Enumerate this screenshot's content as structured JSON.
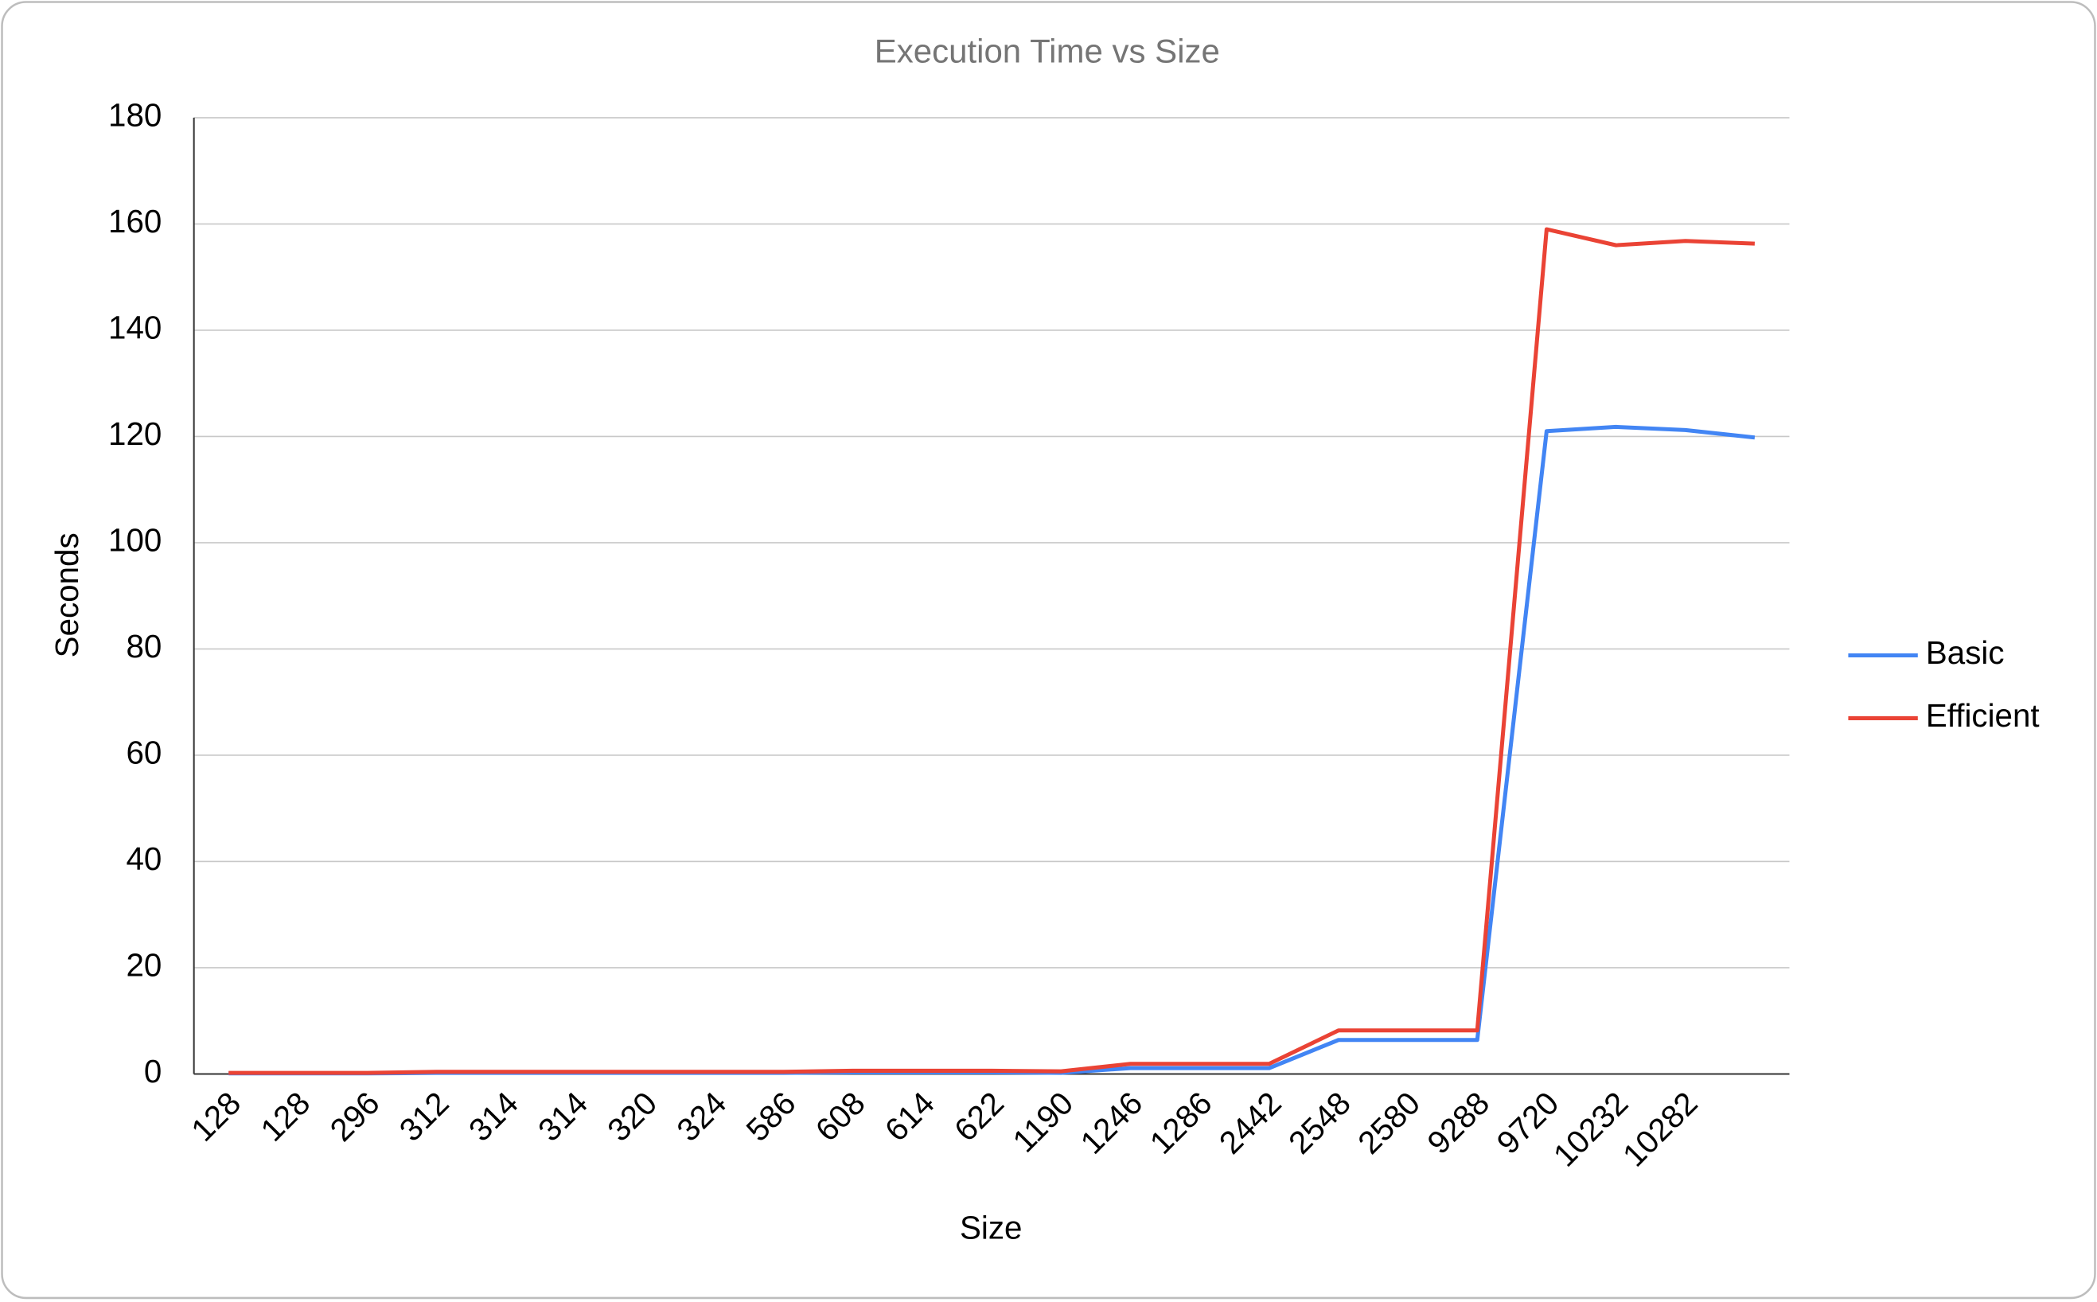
{
  "chart_data": {
    "type": "line",
    "title": "Execution Time vs Size",
    "x_label": "Size",
    "y_label": "Seconds",
    "categories": [
      "128",
      "128",
      "296",
      "312",
      "314",
      "314",
      "320",
      "324",
      "586",
      "608",
      "614",
      "622",
      "1190",
      "1246",
      "1286",
      "2442",
      "2548",
      "2580",
      "9288",
      "9720",
      "10232",
      "10282",
      null
    ],
    "series": [
      {
        "name": "Basic",
        "color": "#4285f4",
        "values": [
          0.1,
          0.1,
          0.1,
          0.2,
          0.2,
          0.2,
          0.2,
          0.2,
          0.2,
          0.3,
          0.3,
          0.3,
          0.2,
          1.1,
          1.1,
          1.1,
          6.4,
          6.4,
          6.4,
          121,
          121.8,
          121.2,
          119.8
        ]
      },
      {
        "name": "Efficient",
        "color": "#ea4335",
        "values": [
          0.2,
          0.2,
          0.2,
          0.4,
          0.4,
          0.4,
          0.4,
          0.4,
          0.4,
          0.6,
          0.6,
          0.6,
          0.5,
          1.9,
          1.9,
          1.9,
          8.2,
          8.2,
          8.2,
          159,
          156,
          156.8,
          156.3
        ]
      }
    ],
    "ylim": [
      0,
      180
    ],
    "yticks": [
      0,
      20,
      40,
      60,
      80,
      100,
      120,
      140,
      160,
      180
    ],
    "grid": true,
    "legend": "right"
  }
}
